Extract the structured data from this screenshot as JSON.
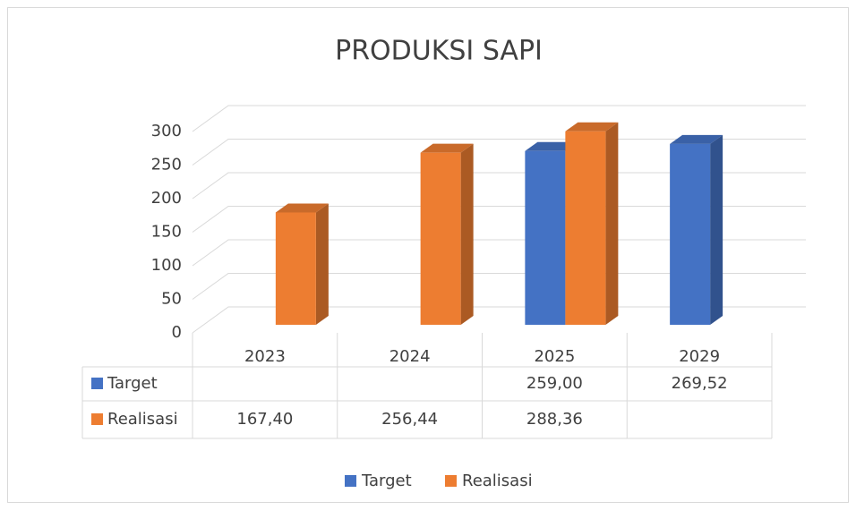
{
  "chart_data": {
    "type": "bar",
    "title": "PRODUKSI SAPI",
    "categories": [
      "2023",
      "2024",
      "2025",
      "2029"
    ],
    "series": [
      {
        "name": "Target",
        "color": "#4472c4",
        "values": [
          null,
          null,
          259.0,
          269.52
        ],
        "value_labels": [
          null,
          null,
          "259,00",
          "269,52"
        ]
      },
      {
        "name": "Realisasi",
        "color": "#ed7d31",
        "values": [
          167.4,
          256.44,
          288.36,
          null
        ],
        "value_labels": [
          "167,40",
          "256,44",
          "288,36",
          null
        ]
      }
    ],
    "ylim": [
      0,
      300
    ],
    "yticks": [
      0,
      50,
      100,
      150,
      200,
      250,
      300
    ],
    "grid": true,
    "legend": "bottom"
  }
}
